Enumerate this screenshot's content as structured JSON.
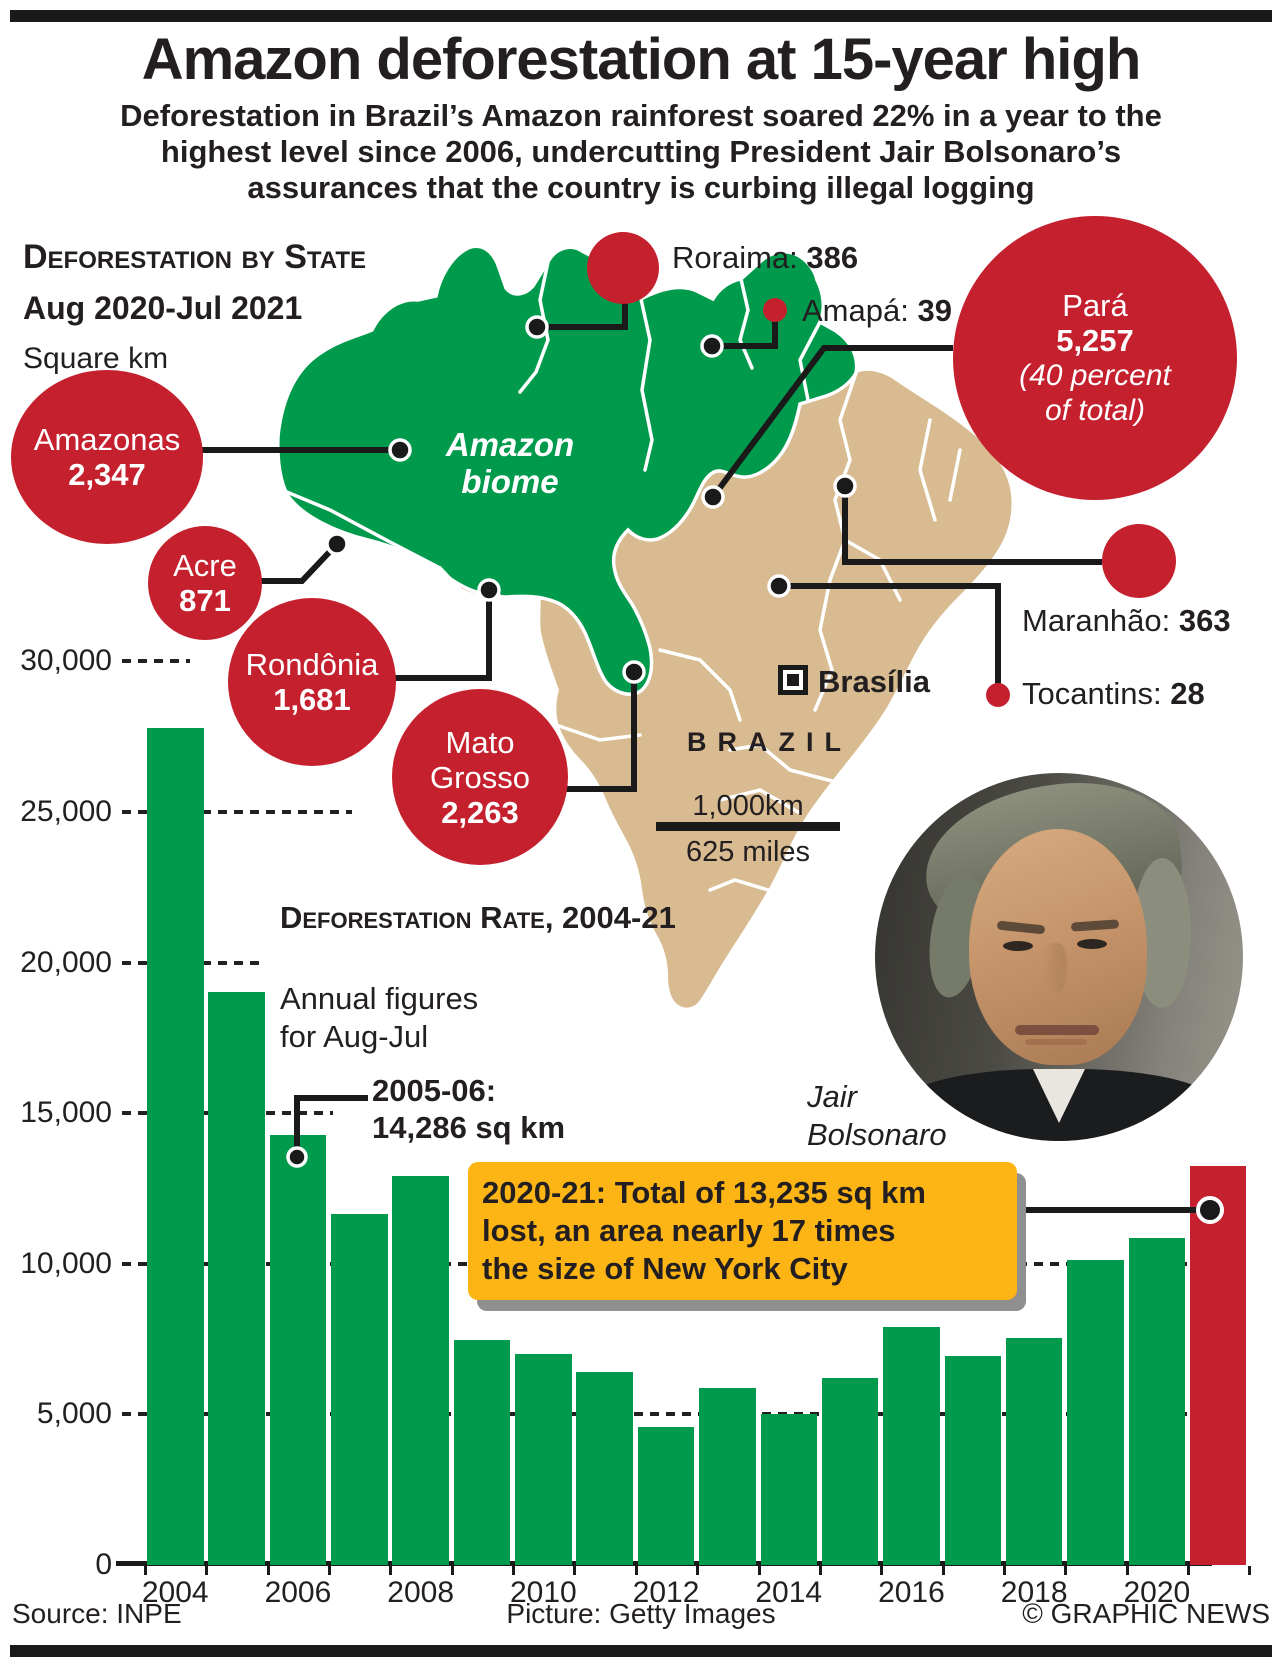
{
  "header": {
    "title": "Amazon deforestation at 15-year high",
    "subtitle": "Deforestation in Brazil’s Amazon rainforest soared 22% in a year to the\nhighest level since 2006, undercutting President Jair Bolsonaro’s\nassurances that the country is curbing illegal logging"
  },
  "map_section": {
    "heading": "Deforestation by State",
    "period": "Aug 2020-Jul 2021",
    "unit": "Square km",
    "biome_label": "Amazon\nbiome",
    "country_label": "BRAZIL",
    "capital_label": "Brasília",
    "scale_km": "1,000km",
    "scale_miles": "625 miles",
    "state_circles": [
      {
        "id": "amazonas",
        "name": "Amazonas",
        "value": "2,347"
      },
      {
        "id": "acre",
        "name": "Acre",
        "value": "871"
      },
      {
        "id": "rondonia",
        "name": "Rondônia",
        "value": "1,681"
      },
      {
        "id": "mato-grosso",
        "name": "Mato\nGrosso",
        "value": "2,263"
      },
      {
        "id": "para",
        "name": "Pará",
        "value": "5,257",
        "note": "(40 percent\nof total)"
      }
    ],
    "state_labels": [
      {
        "id": "roraima",
        "name": "Roraima:",
        "value": "386"
      },
      {
        "id": "amapa",
        "name": "Amapá:",
        "value": "39"
      },
      {
        "id": "maranhao",
        "name": "Maranhão:",
        "value": "363"
      },
      {
        "id": "tocantins",
        "name": "Tocantins:",
        "value": "28"
      }
    ]
  },
  "chart_data": {
    "type": "bar",
    "title": "Deforestation Rate, 2004-21",
    "subtitle": "Annual figures\nfor Aug-Jul",
    "unit": "sq km",
    "x": [
      2004,
      2005,
      2006,
      2007,
      2008,
      2009,
      2010,
      2011,
      2012,
      2013,
      2014,
      2015,
      2016,
      2017,
      2018,
      2019,
      2020,
      2021
    ],
    "values": [
      27772,
      19014,
      14286,
      11651,
      12911,
      7464,
      7000,
      6418,
      4571,
      5891,
      5012,
      6207,
      7893,
      6947,
      7536,
      10129,
      10851,
      13235
    ],
    "highlight_year": 2021,
    "ylim": [
      0,
      30000
    ],
    "y_ticks": [
      30000,
      25000,
      20000,
      15000,
      10000,
      5000,
      0
    ],
    "y_tick_labels": [
      "30,000",
      "25,000",
      "20,000",
      "15,000",
      "10,000",
      "5,000",
      "0"
    ],
    "x_tick_labels": [
      "2004",
      "2006",
      "2008",
      "2010",
      "2012",
      "2014",
      "2016",
      "2018",
      "2020"
    ],
    "bar_color": "#009A4C",
    "highlight_color": "#C5202E",
    "grid": "dashed",
    "annotations": [
      {
        "id": "peak-2006",
        "text": "2005-06:\n14,286 sq km"
      },
      {
        "id": "total-2021",
        "text": "2020-21: Total of 13,235 sq km\nlost, an area nearly 17 times\nthe size of New York City"
      }
    ]
  },
  "photo": {
    "caption": "Jair\nBolsonaro"
  },
  "footer": {
    "source": "Source: INPE",
    "picture": "Picture: Getty Images",
    "credit": "© GRAPHIC NEWS"
  },
  "colors": {
    "green": "#009A4C",
    "red": "#C5202E",
    "tan": "#D8BB90",
    "yellow": "#FDB515",
    "ink": "#231F20"
  }
}
